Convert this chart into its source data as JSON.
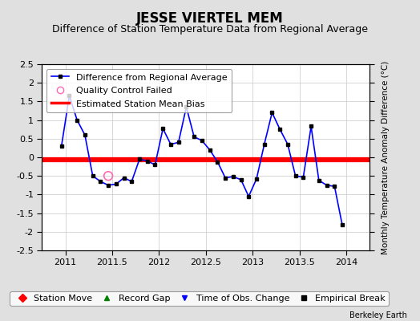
{
  "title": "JESSE VIERTEL MEM",
  "subtitle": "Difference of Station Temperature Data from Regional Average",
  "ylabel": "Monthly Temperature Anomaly Difference (°C)",
  "watermark": "Berkeley Earth",
  "xlim": [
    2010.75,
    2014.25
  ],
  "ylim": [
    -2.5,
    2.5
  ],
  "xticks": [
    2011,
    2011.5,
    2012,
    2012.5,
    2013,
    2013.5,
    2014
  ],
  "yticks": [
    -2.5,
    -2,
    -1.5,
    -1,
    -0.5,
    0,
    0.5,
    1,
    1.5,
    2,
    2.5
  ],
  "bias_value": -0.07,
  "line_color": "#0000ff",
  "bias_color": "#ff0000",
  "qc_color": "#ff69b4",
  "background_color": "#e0e0e0",
  "plot_bg_color": "#ffffff",
  "x_data": [
    2010.958,
    2011.042,
    2011.125,
    2011.208,
    2011.292,
    2011.375,
    2011.458,
    2011.542,
    2011.625,
    2011.708,
    2011.792,
    2011.875,
    2011.958,
    2012.042,
    2012.125,
    2012.208,
    2012.292,
    2012.375,
    2012.458,
    2012.542,
    2012.625,
    2012.708,
    2012.792,
    2012.875,
    2012.958,
    2013.042,
    2013.125,
    2013.208,
    2013.292,
    2013.375,
    2013.458,
    2013.542,
    2013.625,
    2013.708,
    2013.792,
    2013.875,
    2013.958
  ],
  "y_data": [
    0.3,
    1.65,
    1.0,
    0.6,
    -0.5,
    -0.65,
    -0.75,
    -0.72,
    -0.55,
    -0.65,
    -0.05,
    -0.1,
    -0.2,
    0.77,
    0.35,
    0.4,
    1.35,
    0.55,
    0.45,
    0.2,
    -0.12,
    -0.55,
    -0.52,
    -0.6,
    -1.05,
    -0.58,
    0.35,
    1.2,
    0.75,
    0.35,
    -0.5,
    -0.53,
    0.83,
    -0.62,
    -0.75,
    -0.78,
    -1.82
  ],
  "qc_failed_x": [
    2011.458
  ],
  "qc_failed_y": [
    -0.5
  ],
  "title_fontsize": 12,
  "subtitle_fontsize": 9,
  "label_fontsize": 7.5,
  "tick_fontsize": 8,
  "legend_fontsize": 8
}
